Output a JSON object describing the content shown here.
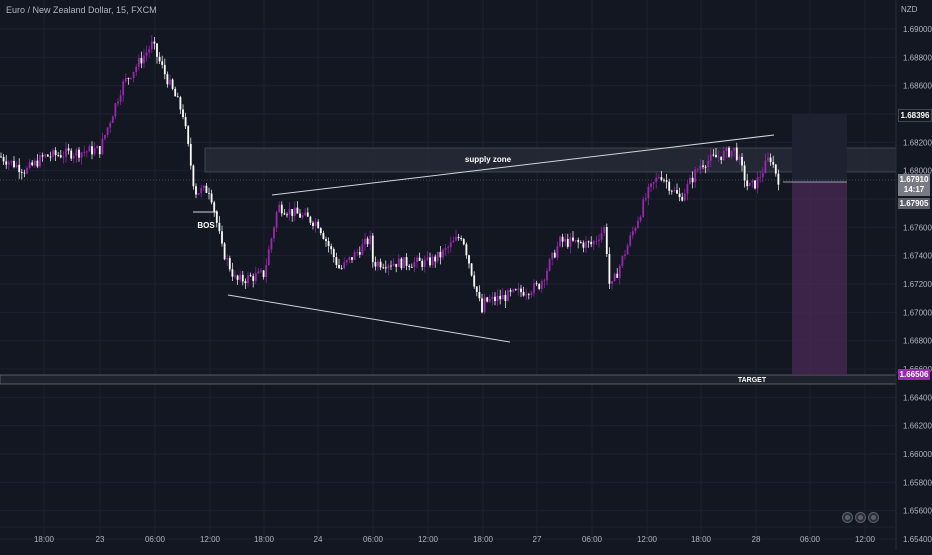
{
  "header": {
    "title": "Euro / New Zealand Dollar, 15, FXCM",
    "currency": "NZD"
  },
  "price_axis": {
    "ticks": [
      "1.69000",
      "1.68800",
      "1.68600",
      "1.68396",
      "1.68200",
      "1.68000",
      "1.67910",
      "14:17",
      "1.67905",
      "1.67600",
      "1.67400",
      "1.67200",
      "1.67000",
      "1.66800",
      "1.66600",
      "1.66506",
      "1.66400",
      "1.66200",
      "1.66000",
      "1.65800",
      "1.65600",
      "1.65400"
    ]
  },
  "badges": {
    "upper_box_price": "1.68396",
    "current_price": "1.67910",
    "countdown": "14:17",
    "entry_price": "1.67905",
    "target_price": "1.66506"
  },
  "time_axis": {
    "labels": [
      "18:00",
      "23",
      "06:00",
      "12:00",
      "18:00",
      "24",
      "06:00",
      "12:00",
      "18:00",
      "27",
      "06:00",
      "12:00",
      "18:00",
      "28",
      "06:00",
      "12:00"
    ]
  },
  "annotations": {
    "supply_zone": "supply zone",
    "bos": "BOS",
    "target": "TARGET"
  },
  "colors": {
    "background": "#131722",
    "candle_up": "#9c27b0",
    "candle_down": "#ffffff",
    "target_box": "#4a2a54",
    "zone": "#2a2e39",
    "line": "#d1d4dc",
    "current_badge": "#787b86",
    "target_badge": "#9c27b0"
  },
  "chart_data": {
    "type": "candlestick",
    "symbol": "EURNZD",
    "timeframe": "15",
    "x_labels": [
      "18:00",
      "23",
      "06:00",
      "12:00",
      "18:00",
      "24",
      "06:00",
      "12:00",
      "18:00",
      "27",
      "06:00",
      "12:00",
      "18:00",
      "28",
      "06:00",
      "12:00"
    ],
    "ylim": [
      1.654,
      1.6912
    ],
    "key_points": [
      {
        "label": "18:00",
        "close": 1.681
      },
      {
        "label": "23",
        "close": 1.6815
      },
      {
        "label": "06:00",
        "close": 1.6884
      },
      {
        "label": "12:00",
        "close": 1.6787
      },
      {
        "label": "18:00",
        "close": 1.6727
      },
      {
        "label": "24",
        "close": 1.6763
      },
      {
        "label": "06:00",
        "close": 1.6735
      },
      {
        "label": "12:00",
        "close": 1.6735
      },
      {
        "label": "18:00",
        "close": 1.6707
      },
      {
        "label": "27",
        "close": 1.6718
      },
      {
        "label": "06:00",
        "close": 1.6748
      },
      {
        "label": "12:00",
        "close": 1.6783
      },
      {
        "label": "18:00",
        "close": 1.6805
      },
      {
        "label": "28",
        "close": 1.6791
      }
    ],
    "supply_zone": [
      1.68,
      1.6816
    ],
    "target": 1.66506,
    "current_price": 1.6791,
    "entry": 1.67905,
    "upper_box_top": 1.68396
  }
}
